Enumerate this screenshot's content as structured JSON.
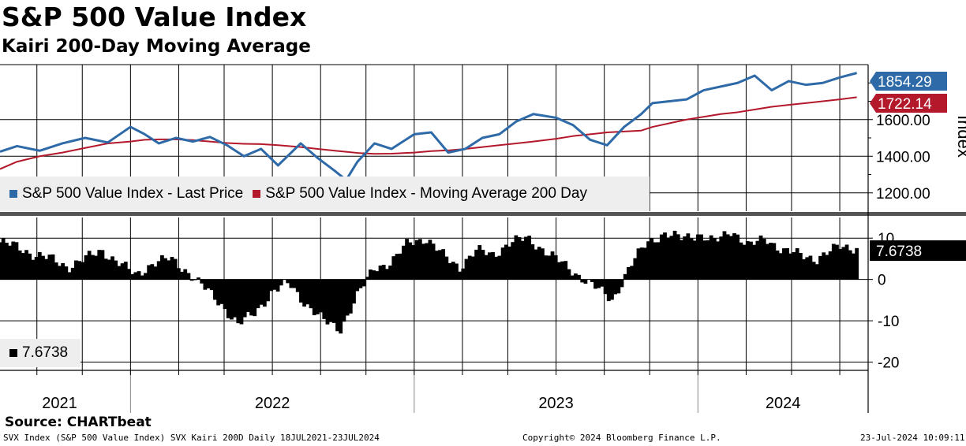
{
  "title": "S&P 500 Value Index",
  "subtitle": "Kairi 200-Day Moving Average",
  "source": "Source: CHARTbeat",
  "footer": {
    "left": "SVX Index (S&P 500 Value Index) SVX Kairi 200D  Daily 18JUL2021-23JUL2024",
    "center": "Copyright© 2024 Bloomberg Finance L.P.",
    "right": "23-Jul-2024 10:09:11"
  },
  "colors": {
    "price": "#2e6aa8",
    "ma": "#b3182b",
    "kairi": "#000000",
    "grid": "#000000"
  },
  "chart_data": [
    {
      "type": "line",
      "title": "S&P 500 Value Index",
      "ylabel": "Index",
      "ylim": [
        1100,
        1900
      ],
      "yticks": [
        "1200.00",
        "1400.00",
        "1600.00"
      ],
      "ytick_values": [
        1200,
        1400,
        1600
      ],
      "legend": [
        "S&P 500 Value Index - Last Price",
        "S&P 500 Value Index - Moving Average 200 Day"
      ],
      "legend_placement": "bottom-left",
      "x": [
        2021.54,
        2021.6,
        2021.68,
        2021.76,
        2021.84,
        2021.92,
        2022.0,
        2022.05,
        2022.1,
        2022.16,
        2022.22,
        2022.28,
        2022.34,
        2022.4,
        2022.46,
        2022.52,
        2022.6,
        2022.66,
        2022.72,
        2022.76,
        2022.8,
        2022.86,
        2022.92,
        2023.0,
        2023.06,
        2023.12,
        2023.18,
        2023.24,
        2023.3,
        2023.36,
        2023.42,
        2023.5,
        2023.56,
        2023.62,
        2023.68,
        2023.74,
        2023.8,
        2023.84,
        2023.9,
        2023.96,
        2024.02,
        2024.08,
        2024.14,
        2024.2,
        2024.26,
        2024.32,
        2024.38,
        2024.44,
        2024.5,
        2024.56
      ],
      "series": [
        {
          "name": "S&P 500 Value Index - Last Price",
          "values": [
            1425,
            1455,
            1430,
            1470,
            1500,
            1475,
            1560,
            1520,
            1470,
            1500,
            1480,
            1505,
            1460,
            1400,
            1440,
            1350,
            1470,
            1390,
            1320,
            1270,
            1370,
            1470,
            1440,
            1520,
            1530,
            1420,
            1440,
            1500,
            1520,
            1590,
            1630,
            1610,
            1570,
            1490,
            1460,
            1560,
            1630,
            1690,
            1700,
            1710,
            1760,
            1780,
            1800,
            1840,
            1760,
            1810,
            1790,
            1800,
            1830,
            1854.29
          ]
        },
        {
          "name": "S&P 500 Value Index - Moving Average 200 Day",
          "values": [
            1330,
            1370,
            1400,
            1420,
            1445,
            1470,
            1480,
            1490,
            1492,
            1492,
            1488,
            1480,
            1472,
            1468,
            1466,
            1460,
            1450,
            1440,
            1430,
            1424,
            1418,
            1413,
            1414,
            1420,
            1428,
            1432,
            1440,
            1450,
            1460,
            1470,
            1480,
            1495,
            1510,
            1520,
            1530,
            1535,
            1540,
            1560,
            1580,
            1600,
            1615,
            1630,
            1640,
            1655,
            1670,
            1680,
            1690,
            1700,
            1710,
            1722.14
          ]
        }
      ],
      "last_labels": [
        "1854.29",
        "1722.14"
      ]
    },
    {
      "type": "bar",
      "title": "Kairi 200D",
      "ylim": [
        -22,
        15
      ],
      "yticks": [
        "10",
        "0",
        "-10",
        "-20"
      ],
      "ytick_values": [
        10,
        0,
        -10,
        -20
      ],
      "legend": [
        "7.6738"
      ],
      "legend_placement": "bottom-left",
      "x": [
        2021.54,
        2021.6,
        2021.66,
        2021.72,
        2021.78,
        2021.84,
        2021.9,
        2021.96,
        2022.02,
        2022.08,
        2022.14,
        2022.2,
        2022.26,
        2022.32,
        2022.38,
        2022.44,
        2022.5,
        2022.56,
        2022.62,
        2022.68,
        2022.74,
        2022.8,
        2022.86,
        2022.92,
        2022.98,
        2023.04,
        2023.1,
        2023.16,
        2023.22,
        2023.28,
        2023.34,
        2023.4,
        2023.46,
        2023.52,
        2023.58,
        2023.64,
        2023.7,
        2023.76,
        2023.82,
        2023.88,
        2023.94,
        2024.0,
        2024.06,
        2024.12,
        2024.18,
        2024.24,
        2024.3,
        2024.36,
        2024.42,
        2024.5,
        2024.56
      ],
      "values": [
        9,
        8,
        6,
        5,
        3,
        5,
        7,
        4,
        1,
        4,
        5,
        2,
        -2,
        -6,
        -11,
        -8,
        -3,
        -1,
        -6,
        -10,
        -12,
        -4,
        3,
        4,
        9,
        10,
        6,
        3,
        7,
        6,
        9,
        10,
        7,
        4,
        1,
        -2,
        -5,
        3,
        9,
        11,
        10,
        11,
        9,
        12,
        8,
        10,
        7,
        6,
        5,
        8,
        7.6738
      ],
      "last_label": "7.6738"
    }
  ],
  "xaxis": {
    "labels": [
      "2021",
      "2022",
      "2023",
      "2024"
    ],
    "label_positions": [
      2021.75,
      2022.5,
      2023.5,
      2024.3
    ],
    "year_starts": [
      2022.0,
      2023.0,
      2024.0
    ],
    "grid": [
      2021.67,
      2021.83,
      2022.0,
      2022.17,
      2022.33,
      2022.5,
      2022.67,
      2022.83,
      2023.0,
      2023.17,
      2023.33,
      2023.5,
      2023.67,
      2023.83,
      2024.0,
      2024.17,
      2024.33,
      2024.5
    ],
    "range": [
      2021.54,
      2024.6
    ]
  }
}
